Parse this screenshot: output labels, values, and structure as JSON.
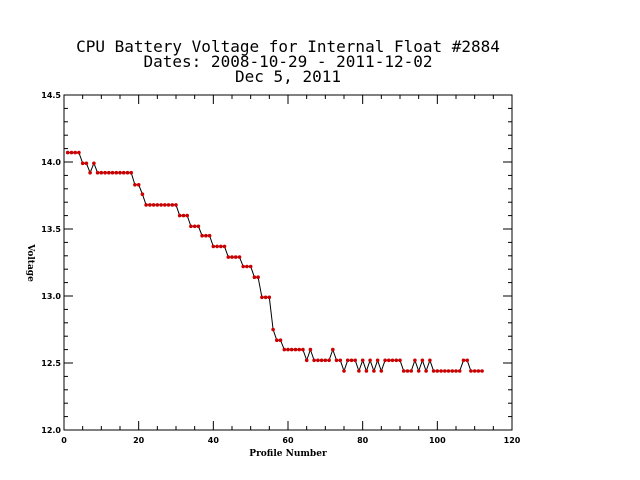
{
  "chart_data": {
    "type": "line",
    "title_lines": [
      "CPU Battery Voltage for Internal Float #2884",
      "Dates:  2008-10-29 -  2011-12-02",
      "Dec  5, 2011"
    ],
    "xlabel": "Profile Number",
    "ylabel": "Voltage",
    "xlim": [
      0,
      120
    ],
    "ylim": [
      12.0,
      14.5
    ],
    "x_ticks": [
      0,
      20,
      40,
      60,
      80,
      100,
      120
    ],
    "y_ticks": [
      12.0,
      12.5,
      13.0,
      13.5,
      14.0,
      14.5
    ],
    "x_tick_labels": [
      "0",
      "20",
      "40",
      "60",
      "80",
      "100",
      "120"
    ],
    "y_tick_labels": [
      "12.0",
      "12.5",
      "13.0",
      "13.5",
      "14.0",
      "14.5"
    ],
    "grid": false,
    "line_color": "#000000",
    "marker_color": "#cc0000",
    "series": [
      {
        "x": [
          1,
          2,
          3,
          4,
          5,
          6,
          7,
          8,
          9,
          10,
          11,
          12,
          13,
          14,
          15,
          16,
          17,
          18,
          19,
          20,
          21,
          22,
          23,
          24,
          25,
          26,
          27,
          28,
          29,
          30,
          31,
          32,
          33,
          34,
          35,
          36,
          37,
          38,
          39,
          40,
          41,
          42,
          43,
          44,
          45,
          46,
          47,
          48,
          49,
          50,
          51,
          52,
          53,
          54,
          55,
          56,
          57,
          58,
          59,
          60,
          61,
          62,
          63,
          64,
          65,
          66,
          67,
          68,
          69,
          70,
          71,
          72,
          73,
          74,
          75,
          76,
          77,
          78,
          79,
          80,
          81,
          82,
          83,
          84,
          85,
          86,
          87,
          88,
          89,
          90,
          91,
          92,
          93,
          94,
          95,
          96,
          97,
          98,
          99,
          100,
          101,
          102,
          103,
          104,
          105,
          106,
          107,
          108,
          109,
          110,
          111,
          112
        ],
        "y": [
          14.07,
          14.07,
          14.07,
          14.07,
          13.99,
          13.99,
          13.92,
          13.99,
          13.92,
          13.92,
          13.92,
          13.92,
          13.92,
          13.92,
          13.92,
          13.92,
          13.92,
          13.92,
          13.83,
          13.83,
          13.76,
          13.68,
          13.68,
          13.68,
          13.68,
          13.68,
          13.68,
          13.68,
          13.68,
          13.68,
          13.6,
          13.6,
          13.6,
          13.52,
          13.52,
          13.52,
          13.45,
          13.45,
          13.45,
          13.37,
          13.37,
          13.37,
          13.37,
          13.29,
          13.29,
          13.29,
          13.29,
          13.22,
          13.22,
          13.22,
          13.14,
          13.14,
          12.99,
          12.99,
          12.99,
          12.75,
          12.67,
          12.67,
          12.6,
          12.6,
          12.6,
          12.6,
          12.6,
          12.6,
          12.52,
          12.6,
          12.52,
          12.52,
          12.52,
          12.52,
          12.52,
          12.6,
          12.52,
          12.52,
          12.44,
          12.52,
          12.52,
          12.52,
          12.44,
          12.52,
          12.44,
          12.52,
          12.44,
          12.52,
          12.44,
          12.52,
          12.52,
          12.52,
          12.52,
          12.52,
          12.44,
          12.44,
          12.44,
          12.52,
          12.44,
          12.52,
          12.44,
          12.52,
          12.44,
          12.44,
          12.44,
          12.44,
          12.44,
          12.44,
          12.44,
          12.44,
          12.52,
          12.52,
          12.44,
          12.44,
          12.44,
          12.44
        ]
      }
    ]
  }
}
